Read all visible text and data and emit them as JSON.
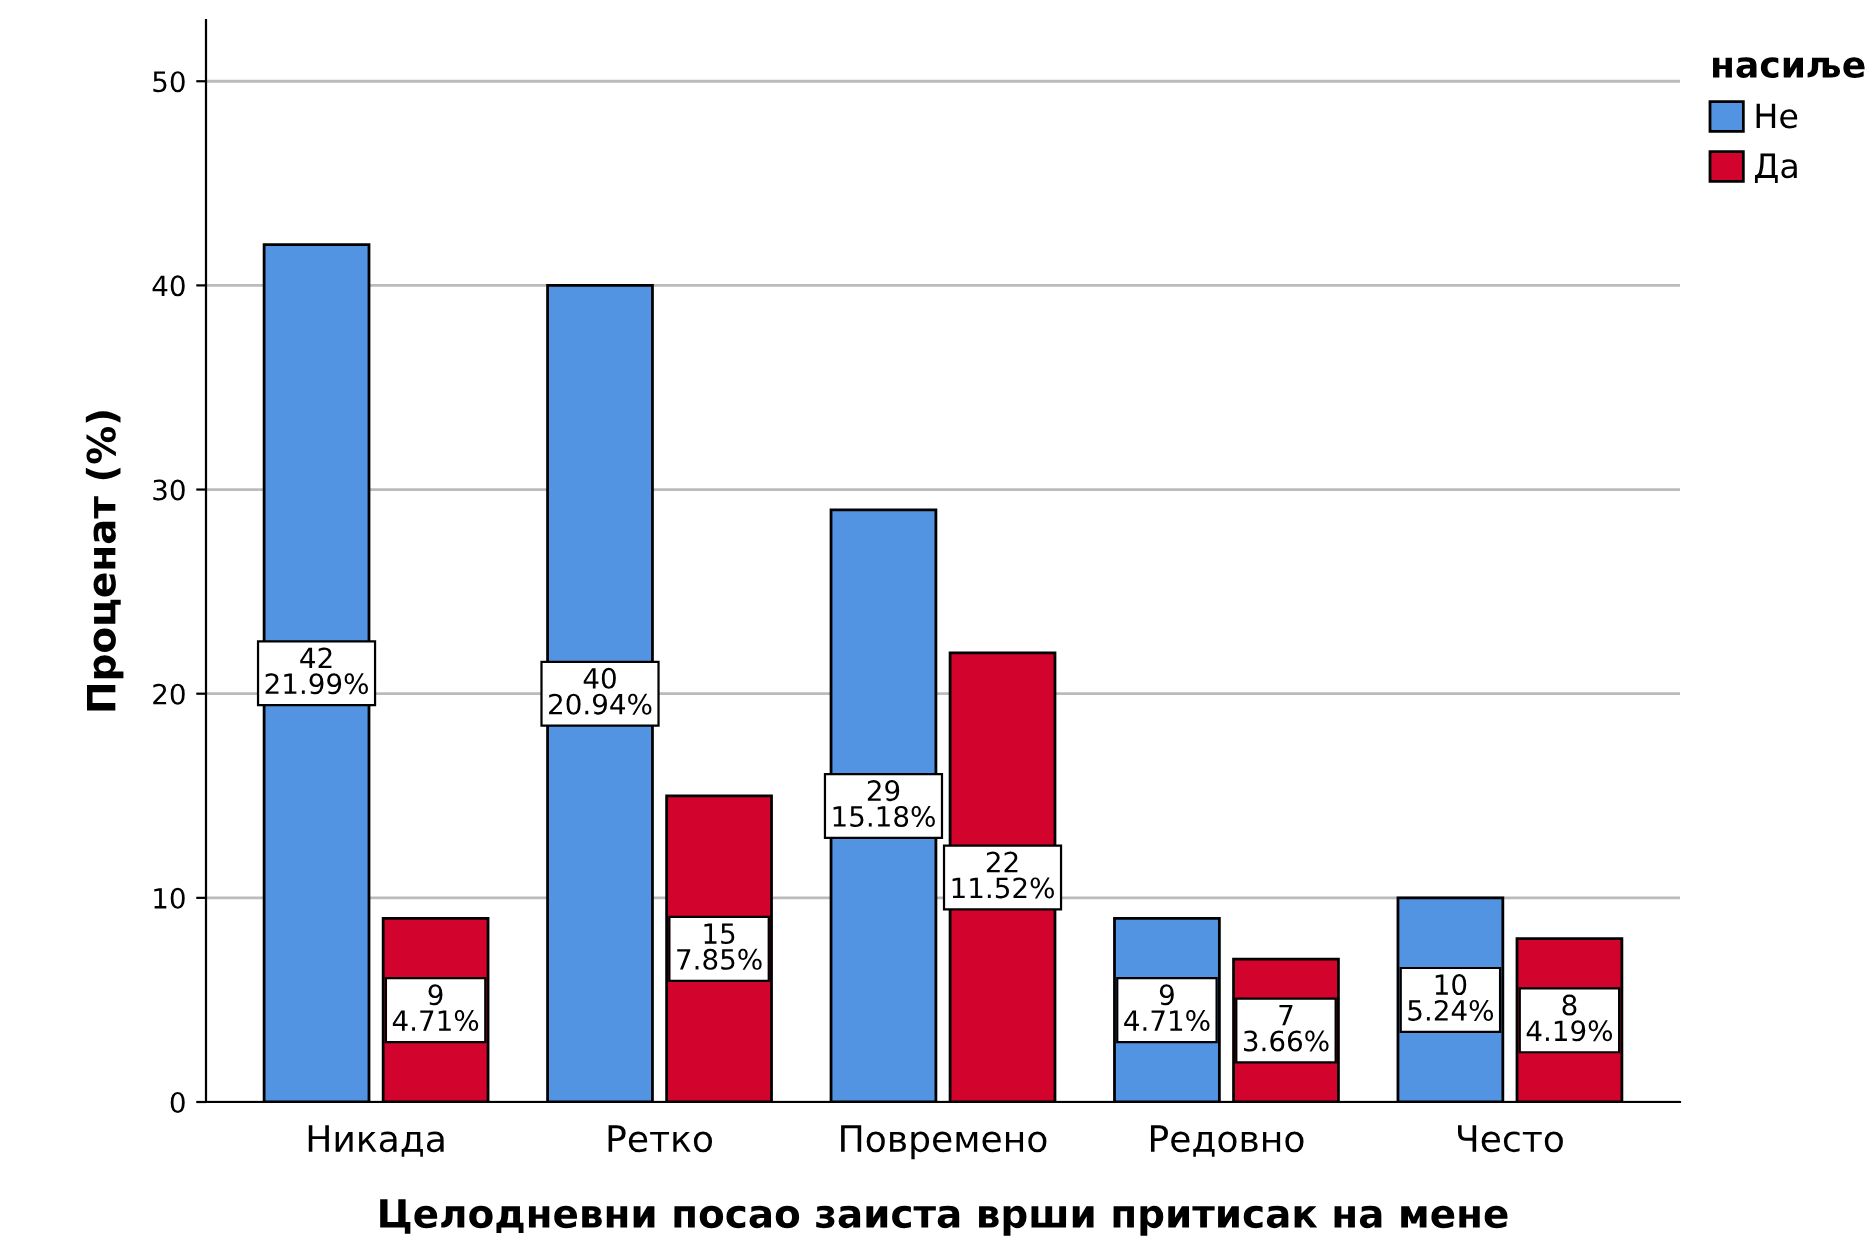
{
  "chart_data": {
    "type": "bar",
    "xlabel": "Целодневни посао заиста врши притисак на мене",
    "ylabel": "Проценат (%)",
    "legend_title": "насиље",
    "categories": [
      "Никада",
      "Ретко",
      "Повремено",
      "Редовно",
      "Често"
    ],
    "series": [
      {
        "name": "Не",
        "color": "#5294e2",
        "values": [
          42,
          40,
          29,
          9,
          10
        ],
        "value_labels": [
          "42\n21.99%",
          "40\n20.94%",
          "29\n15.18%",
          "9\n4.71%",
          "10\n5.24%"
        ]
      },
      {
        "name": "Да",
        "color": "#d2042d",
        "values": [
          9,
          15,
          22,
          7,
          8
        ],
        "value_labels": [
          "9\n4.71%",
          "15\n7.85%",
          "22\n11.52%",
          "7\n3.66%",
          "8\n4.19%"
        ]
      }
    ],
    "ylim": [
      0,
      53
    ],
    "yticks": [
      0,
      10,
      20,
      30,
      40,
      50
    ],
    "grid": "y",
    "legend": "top right"
  }
}
